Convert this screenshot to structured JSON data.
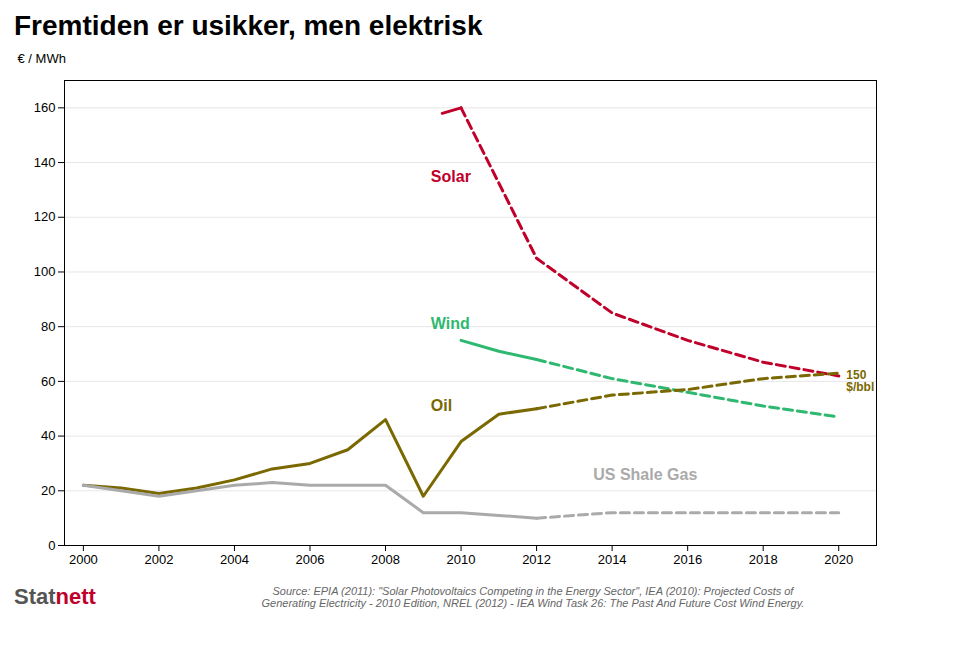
{
  "chart_data": {
    "type": "line",
    "title": "Fremtiden er usikker, men elektrisk",
    "y_label": "€ / MWh",
    "xlim": [
      1999.5,
      2021
    ],
    "xticks": [
      2000,
      2002,
      2004,
      2006,
      2008,
      2010,
      2012,
      2014,
      2016,
      2018,
      2020
    ],
    "ylim": [
      0,
      170
    ],
    "yticks": [
      0,
      20,
      40,
      60,
      80,
      100,
      120,
      140,
      160
    ],
    "grid": true,
    "series": [
      {
        "name": "Solar",
        "color": "#c0002a",
        "label": {
          "x": 2009.2,
          "y": 133
        },
        "segments": [
          {
            "line_style": "solid",
            "x": [
              2009.5,
              2010.0
            ],
            "values": [
              158,
              160
            ]
          },
          {
            "line_style": "dashed",
            "x": [
              2010.0,
              2012,
              2014,
              2016,
              2018,
              2020
            ],
            "values": [
              160,
              105,
              85,
              75,
              67,
              62
            ]
          }
        ]
      },
      {
        "name": "Wind",
        "color": "#2eb870",
        "label": {
          "x": 2009.2,
          "y": 79
        },
        "segments": [
          {
            "line_style": "solid",
            "x": [
              2010.0,
              2011.0,
              2012.0
            ],
            "values": [
              75,
              71,
              68
            ]
          },
          {
            "line_style": "dashed",
            "x": [
              2012.0,
              2014,
              2016,
              2018,
              2020
            ],
            "values": [
              68,
              61,
              56,
              51,
              47
            ]
          }
        ]
      },
      {
        "name": "Oil",
        "color": "#7a6800",
        "label": {
          "x": 2009.2,
          "y": 49
        },
        "segments": [
          {
            "line_style": "solid",
            "x": [
              2000,
              2001,
              2002,
              2003,
              2004,
              2005,
              2006,
              2007,
              2008,
              2009,
              2010,
              2011,
              2012
            ],
            "values": [
              22,
              21,
              19,
              21,
              24,
              28,
              30,
              35,
              46,
              18,
              38,
              48,
              50
            ]
          },
          {
            "line_style": "dashed",
            "x": [
              2012,
              2014,
              2016,
              2018,
              2020
            ],
            "values": [
              50,
              55,
              57,
              61,
              63
            ]
          }
        ]
      },
      {
        "name": "US Shale Gas",
        "color": "#aaaaaa",
        "label": {
          "x": 2013.5,
          "y": 24
        },
        "segments": [
          {
            "line_style": "solid",
            "x": [
              2000,
              2001,
              2002,
              2003,
              2004,
              2005,
              2006,
              2007,
              2008,
              2009,
              2010,
              2011,
              2012
            ],
            "values": [
              22,
              20,
              18,
              20,
              22,
              23,
              22,
              22,
              22,
              12,
              12,
              11,
              10
            ]
          },
          {
            "line_style": "dashed",
            "x": [
              2012,
              2014,
              2016,
              2018,
              2020
            ],
            "values": [
              10,
              12,
              12,
              12,
              12
            ]
          }
        ]
      }
    ],
    "annotations": [
      {
        "text": "150\n$/bbl",
        "x": 2020.2,
        "y": 60,
        "color": "#7a6800"
      }
    ],
    "caption": "Source: EPIA (2011): \"Solar Photovoltaics Competing in the Energy Sector\", IEA (2010): Projected Costs of\nGenerating Electricity - 2010 Edition, NREL (2012) - IEA Wind Task 26: The Past And Future Cost Wind Energy.",
    "logo": [
      {
        "text": "Stat",
        "color": "#555555"
      },
      {
        "text": "nett",
        "color": "#c0002a"
      }
    ]
  }
}
